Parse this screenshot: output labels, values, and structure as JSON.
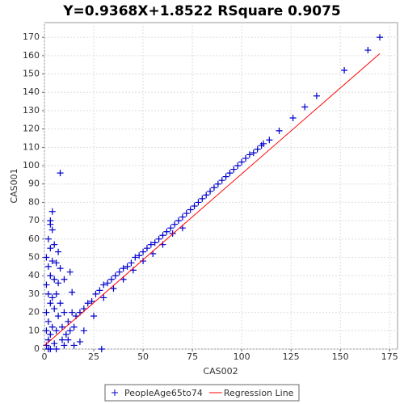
{
  "chart_data": {
    "type": "scatter",
    "title": "Y=0.9368X+1.8522    RSquare 0.9075",
    "x_label": "CAS002",
    "y_label": "CAS001",
    "xlim": [
      0,
      179
    ],
    "ylim": [
      0,
      178
    ],
    "xticks": [
      0,
      25,
      50,
      75,
      100,
      125,
      150,
      175
    ],
    "yticks": [
      0,
      10,
      20,
      30,
      40,
      50,
      60,
      70,
      80,
      90,
      100,
      110,
      120,
      130,
      140,
      150,
      160,
      170
    ],
    "grid": true,
    "legend": "bottom",
    "series": [
      {
        "name": "PeopleAge65to74",
        "color": "#0000cc",
        "type": "scatter",
        "x": [
          1,
          1,
          1,
          1,
          1,
          2,
          2,
          2,
          2,
          2,
          3,
          3,
          3,
          3,
          3,
          4,
          4,
          4,
          4,
          5,
          5,
          5,
          5,
          6,
          6,
          6,
          7,
          7,
          8,
          8,
          9,
          10,
          11,
          12,
          13,
          14,
          15,
          16,
          18,
          20,
          22,
          24,
          26,
          28,
          30,
          32,
          34,
          36,
          38,
          40,
          42,
          44,
          46,
          48,
          50,
          52,
          54,
          56,
          58,
          60,
          62,
          64,
          66,
          68,
          70,
          72,
          74,
          76,
          78,
          80,
          82,
          84,
          86,
          88,
          90,
          92,
          94,
          96,
          98,
          100,
          102,
          104,
          106,
          108,
          110,
          111,
          114,
          119,
          126,
          132,
          138,
          152,
          164,
          170,
          8,
          4,
          3,
          13,
          14,
          29,
          18,
          10,
          12,
          15,
          20,
          25,
          30,
          35,
          40,
          45,
          50,
          55,
          60,
          65,
          70,
          3,
          2,
          6,
          9,
          10,
          7
        ],
        "values": [
          2,
          10,
          20,
          35,
          50,
          5,
          15,
          30,
          45,
          60,
          8,
          25,
          40,
          55,
          68,
          12,
          28,
          48,
          65,
          3,
          22,
          38,
          57,
          10,
          30,
          47,
          18,
          36,
          25,
          44,
          12,
          20,
          8,
          15,
          10,
          20,
          12,
          18,
          20,
          22,
          25,
          26,
          30,
          32,
          35,
          36,
          38,
          40,
          42,
          44,
          45,
          47,
          50,
          51,
          53,
          55,
          57,
          58,
          60,
          62,
          64,
          66,
          68,
          70,
          72,
          74,
          76,
          78,
          80,
          82,
          84,
          86,
          88,
          90,
          92,
          94,
          96,
          98,
          100,
          102,
          104,
          106,
          107,
          109,
          111,
          112,
          114,
          119,
          126,
          132,
          138,
          152,
          163,
          170,
          96,
          75,
          70,
          42,
          31,
          0,
          4,
          2,
          5,
          2,
          10,
          18,
          28,
          33,
          38,
          43,
          48,
          52,
          57,
          63,
          66,
          0,
          0,
          0,
          5,
          38,
          53
        ]
      },
      {
        "name": "Regression Line",
        "color": "#ff0000",
        "type": "line",
        "x": [
          0,
          170
        ],
        "values": [
          1.85,
          161.11
        ]
      }
    ]
  }
}
